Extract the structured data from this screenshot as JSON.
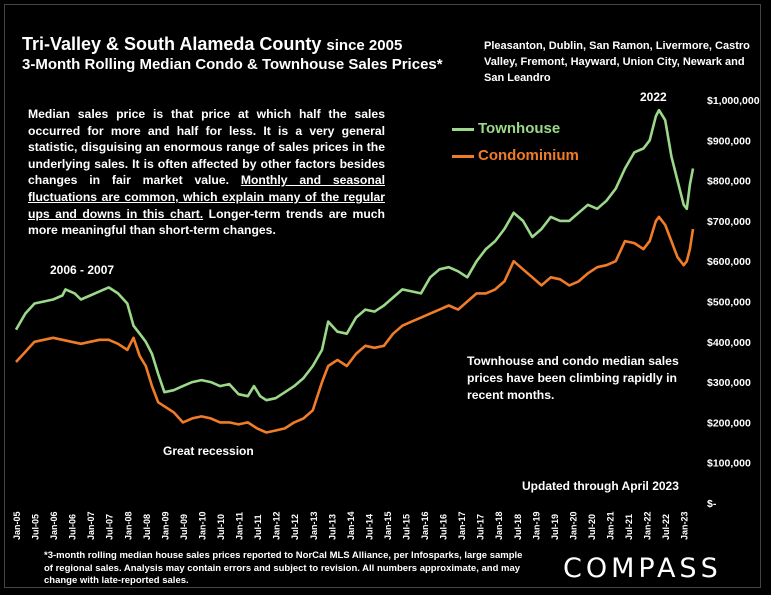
{
  "title": {
    "main": "Tri-Valley & South Alameda County",
    "since": "since 2005",
    "sub": "3-Month Rolling Median Condo & Townhouse Sales Prices*"
  },
  "regions": "Pleasanton, Dublin, San Ramon, Livermore, Castro Valley, Fremont, Hayward, Union City, Newark and San Leandro",
  "description": {
    "part1": "Median sales price is that price at which half the sales occurred for more and half for less. It is a very general statistic, disguising an enormous range of sales prices in the underlying sales. It is often affected by other factors besides changes in fair market value. ",
    "part2": "Monthly and seasonal fluctuations are common, which explain many of the regular ups and downs in this chart.",
    "part3": " Longer-term trends are much more meaningful than short-term changes."
  },
  "annotations": {
    "peak_2006": "2006 - 2007",
    "peak_2022": "2022",
    "recession": "Great recession",
    "recent": "Townhouse and condo median sales prices have been climbing rapidly in recent months.",
    "updated": "Updated through April 2023"
  },
  "footnote": "*3-month rolling median house sales prices reported to NorCal MLS Alliance, per Infosparks, large sample of regional sales. Analysis may contain errors and subject to revision. All numbers approximate, and may change with late-reported sales.",
  "logo": "COMPASS",
  "colors": {
    "townhouse": "#9bd88a",
    "condominium": "#f07c28",
    "background": "#000000"
  },
  "chart_data": {
    "type": "line",
    "x_tick_labels": [
      "Jan-05",
      "Jul-05",
      "Jan-06",
      "Jul-06",
      "Jan-07",
      "Jul-07",
      "Jan-08",
      "Jul-08",
      "Jan-09",
      "Jul-09",
      "Jan-10",
      "Jul-10",
      "Jan-11",
      "Jul-11",
      "Jan-12",
      "Jul-12",
      "Jan-13",
      "Jul-13",
      "Jan-14",
      "Jul-14",
      "Jan-15",
      "Jul-15",
      "Jan-16",
      "Jul-16",
      "Jan-17",
      "Jul-17",
      "Jan-18",
      "Jul-18",
      "Jan-19",
      "Jul-19",
      "Jan-20",
      "Jul-20",
      "Jan-21",
      "Jul-21",
      "Jan-22",
      "Jul-22",
      "Jan-23"
    ],
    "y_tick_labels": [
      "$-",
      "$100,000",
      "$200,000",
      "$300,000",
      "$400,000",
      "$500,000",
      "$600,000",
      "$700,000",
      "$800,000",
      "$900,000",
      "$1,000,000"
    ],
    "ylim": [
      0,
      1000000
    ],
    "x_start": "2005-01",
    "x_end": "2023-04",
    "grid": false,
    "legend_position": "top-right",
    "series": [
      {
        "name": "Townhouse",
        "points": [
          [
            "2005-01",
            430000
          ],
          [
            "2005-04",
            470000
          ],
          [
            "2005-07",
            495000
          ],
          [
            "2005-10",
            500000
          ],
          [
            "2006-01",
            505000
          ],
          [
            "2006-04",
            515000
          ],
          [
            "2006-05",
            530000
          ],
          [
            "2006-08",
            520000
          ],
          [
            "2006-10",
            505000
          ],
          [
            "2007-01",
            515000
          ],
          [
            "2007-04",
            525000
          ],
          [
            "2007-07",
            535000
          ],
          [
            "2007-10",
            520000
          ],
          [
            "2008-01",
            495000
          ],
          [
            "2008-03",
            440000
          ],
          [
            "2008-05",
            420000
          ],
          [
            "2008-07",
            400000
          ],
          [
            "2008-09",
            370000
          ],
          [
            "2008-11",
            320000
          ],
          [
            "2009-01",
            275000
          ],
          [
            "2009-04",
            280000
          ],
          [
            "2009-07",
            290000
          ],
          [
            "2009-10",
            300000
          ],
          [
            "2010-01",
            305000
          ],
          [
            "2010-04",
            300000
          ],
          [
            "2010-07",
            290000
          ],
          [
            "2010-10",
            295000
          ],
          [
            "2011-01",
            270000
          ],
          [
            "2011-04",
            265000
          ],
          [
            "2011-06",
            290000
          ],
          [
            "2011-08",
            265000
          ],
          [
            "2011-10",
            255000
          ],
          [
            "2012-01",
            260000
          ],
          [
            "2012-04",
            275000
          ],
          [
            "2012-07",
            290000
          ],
          [
            "2012-10",
            310000
          ],
          [
            "2013-01",
            340000
          ],
          [
            "2013-04",
            380000
          ],
          [
            "2013-06",
            450000
          ],
          [
            "2013-09",
            425000
          ],
          [
            "2013-12",
            420000
          ],
          [
            "2014-03",
            460000
          ],
          [
            "2014-06",
            480000
          ],
          [
            "2014-09",
            475000
          ],
          [
            "2014-12",
            490000
          ],
          [
            "2015-03",
            510000
          ],
          [
            "2015-06",
            530000
          ],
          [
            "2015-09",
            525000
          ],
          [
            "2015-12",
            520000
          ],
          [
            "2016-03",
            560000
          ],
          [
            "2016-06",
            580000
          ],
          [
            "2016-09",
            585000
          ],
          [
            "2016-12",
            575000
          ],
          [
            "2017-03",
            560000
          ],
          [
            "2017-06",
            600000
          ],
          [
            "2017-09",
            630000
          ],
          [
            "2017-12",
            650000
          ],
          [
            "2018-03",
            680000
          ],
          [
            "2018-06",
            720000
          ],
          [
            "2018-09",
            700000
          ],
          [
            "2018-12",
            660000
          ],
          [
            "2019-03",
            680000
          ],
          [
            "2019-06",
            710000
          ],
          [
            "2019-09",
            700000
          ],
          [
            "2019-12",
            700000
          ],
          [
            "2020-03",
            720000
          ],
          [
            "2020-06",
            740000
          ],
          [
            "2020-09",
            730000
          ],
          [
            "2020-12",
            750000
          ],
          [
            "2021-03",
            780000
          ],
          [
            "2021-06",
            830000
          ],
          [
            "2021-09",
            870000
          ],
          [
            "2021-12",
            880000
          ],
          [
            "2022-02",
            900000
          ],
          [
            "2022-04",
            960000
          ],
          [
            "2022-05",
            975000
          ],
          [
            "2022-07",
            950000
          ],
          [
            "2022-09",
            860000
          ],
          [
            "2022-11",
            800000
          ],
          [
            "2023-01",
            740000
          ],
          [
            "2023-02",
            730000
          ],
          [
            "2023-03",
            790000
          ],
          [
            "2023-04",
            830000
          ]
        ]
      },
      {
        "name": "Condominium",
        "points": [
          [
            "2005-01",
            350000
          ],
          [
            "2005-04",
            375000
          ],
          [
            "2005-07",
            400000
          ],
          [
            "2005-10",
            405000
          ],
          [
            "2006-01",
            410000
          ],
          [
            "2006-04",
            405000
          ],
          [
            "2006-07",
            400000
          ],
          [
            "2006-10",
            395000
          ],
          [
            "2007-01",
            400000
          ],
          [
            "2007-04",
            405000
          ],
          [
            "2007-07",
            405000
          ],
          [
            "2007-10",
            395000
          ],
          [
            "2008-01",
            380000
          ],
          [
            "2008-03",
            410000
          ],
          [
            "2008-05",
            365000
          ],
          [
            "2008-07",
            340000
          ],
          [
            "2008-09",
            290000
          ],
          [
            "2008-11",
            250000
          ],
          [
            "2009-01",
            240000
          ],
          [
            "2009-04",
            225000
          ],
          [
            "2009-07",
            200000
          ],
          [
            "2009-10",
            210000
          ],
          [
            "2010-01",
            215000
          ],
          [
            "2010-04",
            210000
          ],
          [
            "2010-07",
            200000
          ],
          [
            "2010-10",
            200000
          ],
          [
            "2011-01",
            195000
          ],
          [
            "2011-04",
            200000
          ],
          [
            "2011-07",
            185000
          ],
          [
            "2011-10",
            175000
          ],
          [
            "2012-01",
            180000
          ],
          [
            "2012-04",
            185000
          ],
          [
            "2012-07",
            200000
          ],
          [
            "2012-10",
            210000
          ],
          [
            "2013-01",
            230000
          ],
          [
            "2013-04",
            300000
          ],
          [
            "2013-06",
            340000
          ],
          [
            "2013-09",
            355000
          ],
          [
            "2013-12",
            340000
          ],
          [
            "2014-03",
            370000
          ],
          [
            "2014-06",
            390000
          ],
          [
            "2014-09",
            385000
          ],
          [
            "2014-12",
            390000
          ],
          [
            "2015-03",
            420000
          ],
          [
            "2015-06",
            440000
          ],
          [
            "2015-09",
            450000
          ],
          [
            "2015-12",
            460000
          ],
          [
            "2016-03",
            470000
          ],
          [
            "2016-06",
            480000
          ],
          [
            "2016-09",
            490000
          ],
          [
            "2016-12",
            480000
          ],
          [
            "2017-03",
            500000
          ],
          [
            "2017-06",
            520000
          ],
          [
            "2017-09",
            520000
          ],
          [
            "2017-12",
            530000
          ],
          [
            "2018-03",
            550000
          ],
          [
            "2018-06",
            600000
          ],
          [
            "2018-09",
            580000
          ],
          [
            "2018-12",
            560000
          ],
          [
            "2019-03",
            540000
          ],
          [
            "2019-06",
            560000
          ],
          [
            "2019-09",
            555000
          ],
          [
            "2019-12",
            540000
          ],
          [
            "2020-03",
            550000
          ],
          [
            "2020-06",
            570000
          ],
          [
            "2020-09",
            585000
          ],
          [
            "2020-12",
            590000
          ],
          [
            "2021-03",
            600000
          ],
          [
            "2021-06",
            650000
          ],
          [
            "2021-09",
            645000
          ],
          [
            "2021-12",
            630000
          ],
          [
            "2022-02",
            650000
          ],
          [
            "2022-04",
            700000
          ],
          [
            "2022-05",
            710000
          ],
          [
            "2022-07",
            690000
          ],
          [
            "2022-09",
            650000
          ],
          [
            "2022-11",
            610000
          ],
          [
            "2023-01",
            590000
          ],
          [
            "2023-02",
            600000
          ],
          [
            "2023-03",
            630000
          ],
          [
            "2023-04",
            680000
          ]
        ]
      }
    ]
  }
}
